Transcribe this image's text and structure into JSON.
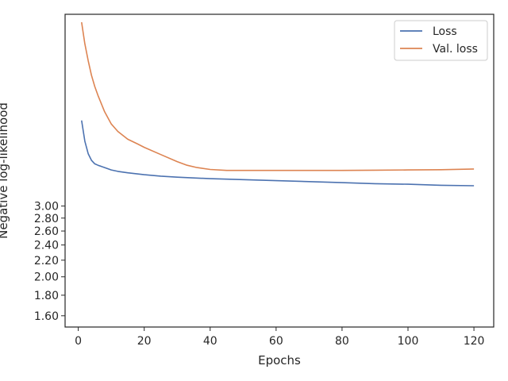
{
  "chart_data": {
    "type": "line",
    "xlabel": "Epochs",
    "ylabel": "Negative log-likelihood",
    "xlim": [
      -4,
      126
    ],
    "ylim": [
      1.5,
      9.0
    ],
    "yscale": "log",
    "grid": false,
    "legend": "top-right",
    "xticks": [
      0,
      20,
      40,
      60,
      80,
      100,
      120
    ],
    "yticks": [
      1.6,
      1.8,
      2.0,
      2.2,
      2.4,
      2.6,
      2.8,
      3.0
    ],
    "ytick_labels": [
      "1.60",
      "1.80",
      "2.00",
      "2.20",
      "2.40",
      "2.60",
      "2.80",
      "3.00"
    ],
    "series": [
      {
        "name": "Loss",
        "color": "#4c72b0",
        "x": [
          1,
          2,
          3,
          4,
          5,
          6,
          8,
          10,
          12,
          15,
          20,
          25,
          30,
          40,
          50,
          60,
          70,
          80,
          90,
          100,
          110,
          120
        ],
        "y": [
          4.9,
          4.35,
          4.05,
          3.9,
          3.82,
          3.79,
          3.74,
          3.69,
          3.66,
          3.63,
          3.59,
          3.56,
          3.54,
          3.51,
          3.49,
          3.47,
          3.45,
          3.43,
          3.41,
          3.4,
          3.38,
          3.37
        ]
      },
      {
        "name": "Val. loss",
        "color": "#dd8452",
        "x": [
          1,
          2,
          3,
          4,
          5,
          6,
          8,
          10,
          12,
          15,
          18,
          20,
          25,
          30,
          33,
          36,
          40,
          45,
          50,
          60,
          70,
          80,
          90,
          100,
          110,
          120
        ],
        "y": [
          8.6,
          7.6,
          6.9,
          6.35,
          5.95,
          5.65,
          5.15,
          4.8,
          4.6,
          4.4,
          4.28,
          4.2,
          4.03,
          3.87,
          3.79,
          3.74,
          3.7,
          3.68,
          3.68,
          3.68,
          3.68,
          3.68,
          3.685,
          3.69,
          3.695,
          3.71
        ]
      }
    ]
  }
}
